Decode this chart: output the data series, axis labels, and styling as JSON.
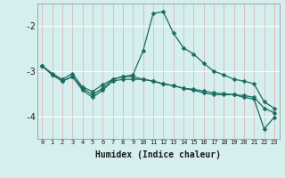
{
  "xlabel": "Humidex (Indice chaleur)",
  "bg_color": "#d5eeee",
  "line_color": "#1a6b60",
  "grid_color_v": "#d8b8b8",
  "grid_color_h": "#ffffff",
  "ylim": [
    -4.5,
    -1.5
  ],
  "xlim": [
    -0.5,
    23.5
  ],
  "yticks": [
    -4,
    -3,
    -2
  ],
  "xticks": [
    0,
    1,
    2,
    3,
    4,
    5,
    6,
    7,
    8,
    9,
    10,
    11,
    12,
    13,
    14,
    15,
    16,
    17,
    18,
    19,
    20,
    21,
    22,
    23
  ],
  "line1_x": [
    0,
    1,
    2,
    3,
    4,
    5,
    6,
    7,
    8,
    9,
    10,
    11,
    12,
    13,
    14,
    15,
    16,
    17,
    18,
    19,
    20,
    21,
    22,
    23
  ],
  "line1_y": [
    -2.88,
    -3.05,
    -3.18,
    -3.05,
    -3.35,
    -3.45,
    -3.3,
    -3.18,
    -3.12,
    -3.08,
    -2.55,
    -1.72,
    -1.68,
    -2.15,
    -2.48,
    -2.62,
    -2.82,
    -3.0,
    -3.08,
    -3.18,
    -3.22,
    -3.28,
    -3.68,
    -3.82
  ],
  "line2_x": [
    0,
    1,
    2,
    3,
    4,
    5,
    6,
    7,
    8,
    9,
    10,
    11,
    12,
    13,
    14,
    15,
    16,
    17,
    18,
    19,
    20,
    21,
    22,
    23
  ],
  "line2_y": [
    -2.88,
    -3.08,
    -3.22,
    -3.12,
    -3.38,
    -3.52,
    -3.38,
    -3.18,
    -3.12,
    -3.12,
    -3.18,
    -3.22,
    -3.28,
    -3.32,
    -3.38,
    -3.42,
    -3.48,
    -3.52,
    -3.52,
    -3.52,
    -3.58,
    -3.62,
    -4.28,
    -4.02
  ],
  "line3_x": [
    0,
    1,
    2,
    3,
    4,
    5,
    6,
    7,
    8,
    9,
    10,
    11,
    12,
    13,
    14,
    15,
    16,
    17,
    18,
    19,
    20,
    21,
    22,
    23
  ],
  "line3_y": [
    -2.88,
    -3.08,
    -3.22,
    -3.12,
    -3.42,
    -3.58,
    -3.42,
    -3.22,
    -3.18,
    -3.18,
    -3.18,
    -3.22,
    -3.28,
    -3.32,
    -3.38,
    -3.4,
    -3.44,
    -3.48,
    -3.5,
    -3.52,
    -3.54,
    -3.58,
    -3.82,
    -3.92
  ]
}
